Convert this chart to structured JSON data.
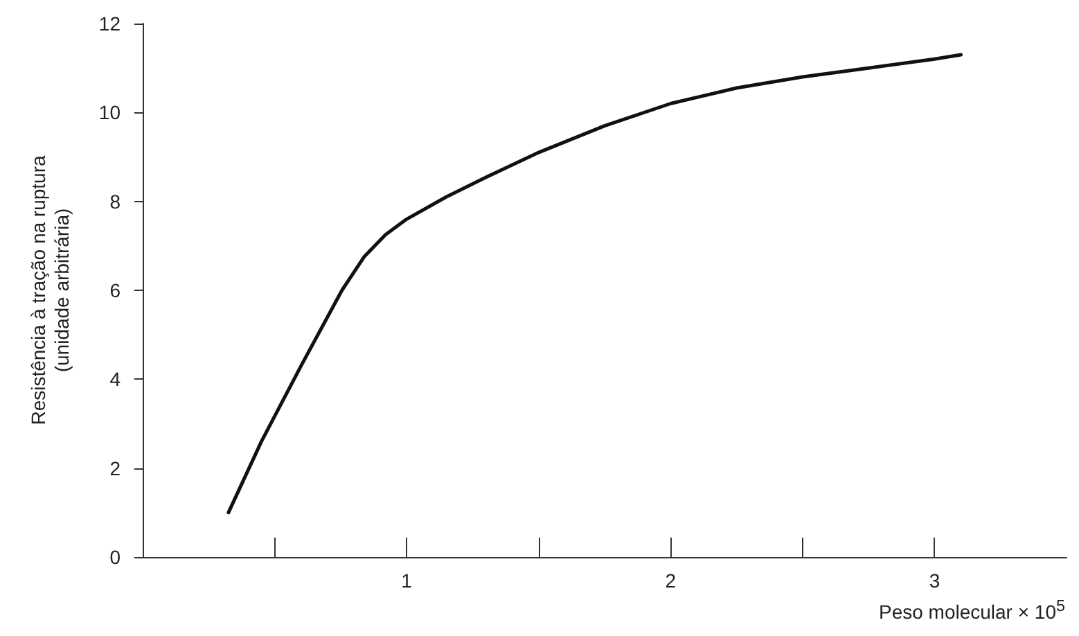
{
  "chart_data": {
    "type": "line",
    "xlabel": "Peso molecular × 10$^{5}$",
    "ylabel": "Resistência à tração na ruptura\n(unidade arbitrária)",
    "series": [
      {
        "color": "#111111",
        "x": [
          0.325,
          0.45,
          0.6,
          0.755,
          0.84,
          0.92,
          1.0,
          1.15,
          1.3,
          1.5,
          1.75,
          2.0,
          2.25,
          2.5,
          2.75,
          3.0,
          3.1
        ],
        "values": [
          1.0,
          2.6,
          4.3,
          6.0,
          6.76,
          7.25,
          7.6,
          8.1,
          8.54,
          9.1,
          9.7,
          10.2,
          10.55,
          10.8,
          11.0,
          11.2,
          11.3
        ]
      }
    ],
    "xlim": [
      0,
      3.5
    ],
    "xticks": [
      {
        "value": 0.5,
        "label": null
      },
      1,
      {
        "value": 1.5,
        "label": null
      },
      2,
      {
        "value": 2.5,
        "label": null
      },
      3
    ],
    "ylim": [
      0,
      12
    ],
    "yticks": [
      0,
      2,
      4,
      6,
      8,
      10,
      12
    ],
    "grid": false,
    "marker": "none",
    "line_style": "solid"
  }
}
